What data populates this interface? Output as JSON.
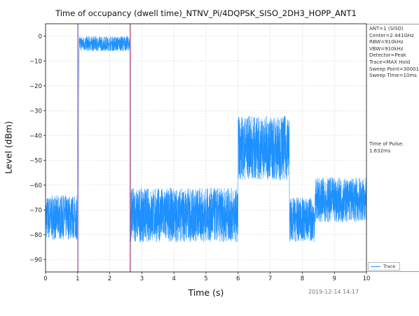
{
  "chart_data": {
    "type": "line",
    "title": "Time of occupancy (dwell time)_NTNV_Pi/4DQPSK_SISO_2DH3_HOPP_ANT1",
    "xlabel": "Time (s)",
    "ylabel": "Level (dBm)",
    "xlim": [
      0,
      10
    ],
    "ylim": [
      -95,
      5
    ],
    "x_ticks": [
      "0",
      "1",
      "2",
      "3",
      "4",
      "5",
      "6",
      "7",
      "8",
      "9",
      "10"
    ],
    "y_ticks": [
      "0",
      "−10",
      "−20",
      "−30",
      "−40",
      "−50",
      "−60",
      "−70",
      "−80",
      "−90"
    ],
    "grid": true,
    "series": [
      {
        "name": "Trace",
        "color": "#1e90ff",
        "segments": [
          {
            "x_start": 0.0,
            "x_end": 1.0,
            "mean": -73,
            "spread": 9
          },
          {
            "x_start": 1.05,
            "x_end": 2.63,
            "mean": -3,
            "spread": 3
          },
          {
            "x_start": 2.63,
            "x_end": 6.0,
            "mean": -72,
            "spread": 11
          },
          {
            "x_start": 6.0,
            "x_end": 7.6,
            "mean": -45,
            "spread": 13
          },
          {
            "x_start": 7.6,
            "x_end": 8.4,
            "mean": -74,
            "spread": 9
          },
          {
            "x_start": 8.4,
            "x_end": 10.0,
            "mean": -66,
            "spread": 9
          }
        ]
      }
    ],
    "markers": [
      {
        "x": 1.0,
        "color": "#ff4444"
      },
      {
        "x": 2.632,
        "color": "#ff4444"
      }
    ],
    "legend_position": "bottom-right"
  },
  "info": {
    "settings": "ANT=1 (SISO)\nCenter=2.441GHz\nRBW=910kHz\nVBW=910kHz\nDetector=Peak\nTrace=MAX Hold\nSweep Point=30001\nSweep Time=10ms",
    "pulse": "Time of Pulse:\n1.632ms"
  },
  "timestamp": "2019-12-14 14:17"
}
